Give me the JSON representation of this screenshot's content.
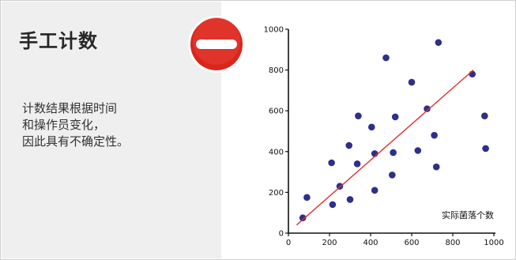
{
  "panel": {
    "title": "手工计数",
    "description": "计数结果根据时间\n和操作员变化，\n因此具有不确定性。"
  },
  "icons": {
    "badge": "no-entry-icon"
  },
  "colors": {
    "panel_bg": "#efefef",
    "badge_red": "#d9261c",
    "points": "#2e2f8c",
    "trend": "#e0302a"
  },
  "chart_data": {
    "type": "scatter",
    "title": "",
    "xlabel": "",
    "ylabel": "",
    "annotation": "实际菌落个数",
    "xlim": [
      0,
      1000
    ],
    "ylim": [
      0,
      1000
    ],
    "xticks": [
      0,
      200,
      400,
      600,
      800,
      1000
    ],
    "yticks": [
      0,
      200,
      400,
      600,
      800,
      1000
    ],
    "grid": false,
    "points": [
      {
        "x": 70,
        "y": 75
      },
      {
        "x": 90,
        "y": 175
      },
      {
        "x": 210,
        "y": 345
      },
      {
        "x": 215,
        "y": 140
      },
      {
        "x": 250,
        "y": 230
      },
      {
        "x": 295,
        "y": 430
      },
      {
        "x": 300,
        "y": 165
      },
      {
        "x": 335,
        "y": 340
      },
      {
        "x": 340,
        "y": 575
      },
      {
        "x": 405,
        "y": 520
      },
      {
        "x": 420,
        "y": 390
      },
      {
        "x": 420,
        "y": 210
      },
      {
        "x": 475,
        "y": 860
      },
      {
        "x": 505,
        "y": 285
      },
      {
        "x": 510,
        "y": 395
      },
      {
        "x": 520,
        "y": 570
      },
      {
        "x": 600,
        "y": 740
      },
      {
        "x": 630,
        "y": 405
      },
      {
        "x": 675,
        "y": 610
      },
      {
        "x": 710,
        "y": 480
      },
      {
        "x": 720,
        "y": 325
      },
      {
        "x": 730,
        "y": 935
      },
      {
        "x": 895,
        "y": 780
      },
      {
        "x": 955,
        "y": 575
      },
      {
        "x": 960,
        "y": 415
      }
    ],
    "trendline": {
      "x": [
        40,
        900
      ],
      "y": [
        40,
        800
      ]
    }
  }
}
